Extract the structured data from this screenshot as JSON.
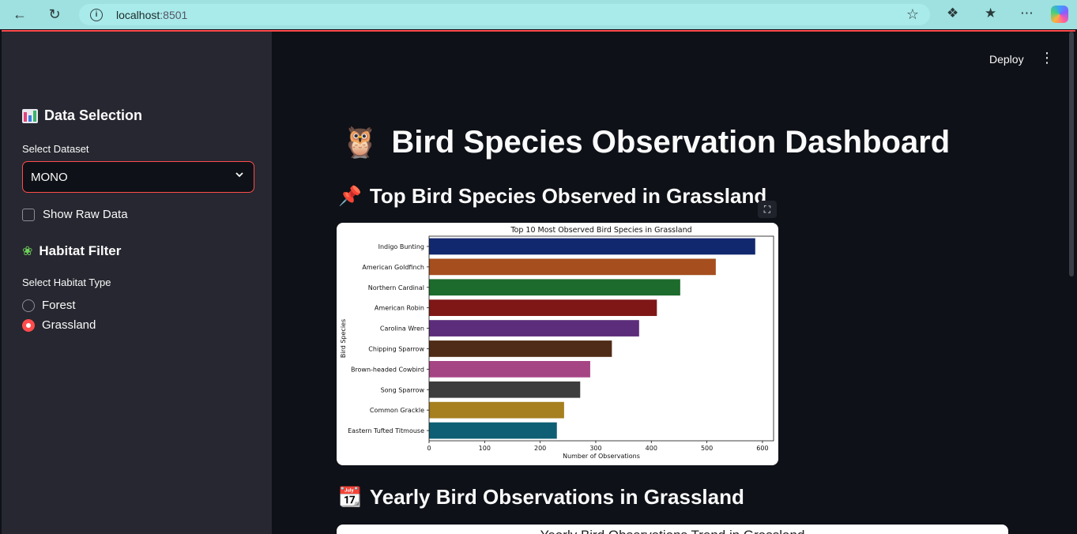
{
  "browser": {
    "url_host": "localhost",
    "url_port": ":8501"
  },
  "sidebar": {
    "data_heading": "Data Selection",
    "dataset_label": "Select Dataset",
    "dataset_value": "MONO",
    "raw_data_label": "Show Raw Data",
    "habitat_heading": "Habitat Filter",
    "habitat_label": "Select Habitat Type",
    "habitat_options": [
      "Forest",
      "Grassland"
    ],
    "habitat_selected": "Grassland"
  },
  "header": {
    "deploy_label": "Deploy"
  },
  "main": {
    "title": "Bird Species Observation Dashboard",
    "section1_title": "Top Bird Species Observed in Grassland",
    "section2_title": "Yearly Bird Observations in Grassland",
    "chart2_title_partial": "Yearly Bird Observations Trend in Grassland"
  },
  "colors": {
    "accent": "#ff4b4b",
    "sidebar_bg": "#262730",
    "main_bg": "#0e1117"
  },
  "chart_data": {
    "type": "bar",
    "orientation": "horizontal",
    "title": "Top 10 Most Observed Bird Species in Grassland",
    "xlabel": "Number of Observations",
    "ylabel": "Bird Species",
    "xlim": [
      0,
      620
    ],
    "xticks": [
      0,
      100,
      200,
      300,
      400,
      500,
      600
    ],
    "categories": [
      "Indigo Bunting",
      "American Goldfinch",
      "Northern Cardinal",
      "American Robin",
      "Carolina Wren",
      "Chipping Sparrow",
      "Brown-headed Cowbird",
      "Song Sparrow",
      "Common Grackle",
      "Eastern Tufted Titmouse"
    ],
    "values": [
      587,
      516,
      452,
      410,
      378,
      329,
      290,
      272,
      243,
      230
    ],
    "colors": [
      "#12286e",
      "#a64e1e",
      "#1d6b2d",
      "#7f1717",
      "#5c2d7a",
      "#4f2c17",
      "#a64584",
      "#3d3d3d",
      "#a67f1f",
      "#0e5f73"
    ]
  }
}
